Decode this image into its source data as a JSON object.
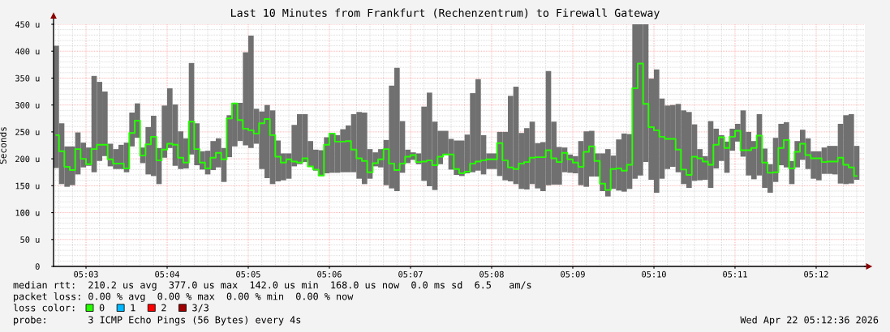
{
  "chart_data": {
    "type": "bar",
    "title": "Last 10 Minutes from Frankfurt (Rechenzentrum) to Firewall Gateway",
    "ylabel": "Seconds",
    "x": [
      5.04389,
      5.045,
      5.04611,
      5.04722,
      5.04833,
      5.04944,
      5.05056,
      5.05167,
      5.05278,
      5.05389,
      5.055,
      5.05611,
      5.05722,
      5.05833,
      5.05944,
      5.06056,
      5.06167,
      5.06278,
      5.06389,
      5.065,
      5.06611,
      5.06722,
      5.06833,
      5.06944,
      5.07056,
      5.07167,
      5.07278,
      5.07389,
      5.075,
      5.07611,
      5.07722,
      5.07833,
      5.07944,
      5.08056,
      5.08167,
      5.08278,
      5.08389,
      5.085,
      5.08611,
      5.08722,
      5.08833,
      5.08944,
      5.09056,
      5.09167,
      5.09278,
      5.09389,
      5.095,
      5.09611,
      5.09722,
      5.09833,
      5.09944,
      5.10056,
      5.10167,
      5.10278,
      5.10389,
      5.105,
      5.10611,
      5.10722,
      5.10833,
      5.10944,
      5.11056,
      5.11167,
      5.11278,
      5.11389,
      5.115,
      5.11611,
      5.11722,
      5.11833,
      5.11944,
      5.12056,
      5.12167,
      5.12278,
      5.12389,
      5.125,
      5.12611,
      5.12722,
      5.12833,
      5.12944,
      5.13056,
      5.13167,
      5.13278,
      5.13389,
      5.135,
      5.13611,
      5.13722,
      5.13833,
      5.13944,
      5.14056,
      5.14167,
      5.14278,
      5.14389,
      5.145,
      5.14611,
      5.14722,
      5.14833,
      5.14944,
      5.15056,
      5.15167,
      5.15278,
      5.15389,
      5.155,
      5.15611,
      5.15722,
      5.15833,
      5.15944,
      5.16056,
      5.16167,
      5.16278,
      5.16389,
      5.165,
      5.16611,
      5.16722,
      5.16833,
      5.16944,
      5.17056,
      5.17167,
      5.17278,
      5.17389,
      5.175,
      5.17611,
      5.17722,
      5.17833,
      5.17944,
      5.18056,
      5.18167,
      5.18278,
      5.18389,
      5.185,
      5.18611,
      5.18722,
      5.18833,
      5.18944,
      5.19056,
      5.19167,
      5.19278,
      5.19389,
      5.195,
      5.19611,
      5.19722,
      5.19833,
      5.19944,
      5.20056,
      5.20167,
      5.20278,
      5.20389,
      5.205,
      5.20611,
      5.20722,
      5.20833
    ],
    "series": [
      {
        "color": "#707070",
        "values": [
          227,
          113,
          75,
          72,
          78,
          46,
          34,
          179,
          147,
          120,
          42,
          37,
          45,
          55,
          63,
          64,
          29,
          88,
          112,
          67,
          97,
          111,
          114,
          70,
          56,
          170,
          78,
          34,
          44,
          54,
          54,
          63,
          78,
          81,
          71,
          173,
          209,
          65,
          107,
          136,
          137,
          76,
          50,
          47,
          77,
          93,
          89,
          48,
          39,
          48,
          67,
          74,
          70,
          80,
          87,
          108,
          124,
          133,
          55,
          26,
          34,
          84,
          191,
          229,
          96,
          25,
          14,
          20,
          138,
          174,
          127,
          62,
          45,
          57,
          64,
          66,
          72,
          147,
          170,
          73,
          29,
          29,
          82,
          90,
          159,
          181,
          104,
          114,
          116,
          84,
          91,
          212,
          117,
          70,
          46,
          34,
          32,
          82,
          103,
          85,
          43,
          70,
          88,
          62,
          95,
          108,
          102,
          287,
          281,
          256,
          188,
          229,
          149,
          118,
          115,
          127,
          137,
          141,
          105,
          58,
          44,
          124,
          74,
          48,
          58,
          41,
          33,
          86,
          81,
          71,
          114,
          73,
          53,
          82,
          77,
          84,
          43,
          49,
          56,
          57,
          51,
          54,
          49,
          52,
          53,
          111,
          128,
          129,
          63
        ],
        "base": [
          183,
          153,
          148,
          151,
          171,
          184,
          187,
          175,
          196,
          205,
          186,
          181,
          181,
          175,
          223,
          239,
          192,
          171,
          168,
          153,
          202,
          220,
          187,
          181,
          182,
          208,
          188,
          180,
          171,
          179,
          184,
          157,
          203,
          223,
          233,
          225,
          220,
          228,
          181,
          164,
          153,
          158,
          160,
          163,
          186,
          190,
          194,
          185,
          178,
          168,
          173,
          174,
          174,
          175,
          175,
          175,
          163,
          153,
          163,
          186,
          184,
          151,
          145,
          140,
          174,
          192,
          198,
          190,
          159,
          149,
          142,
          190,
          207,
          180,
          170,
          168,
          173,
          175,
          178,
          171,
          181,
          181,
          168,
          160,
          158,
          153,
          144,
          143,
          153,
          145,
          140,
          151,
          152,
          152,
          175,
          174,
          173,
          151,
          148,
          167,
          167,
          140,
          130,
          144,
          141,
          139,
          144,
          163,
          169,
          194,
          161,
          137,
          163,
          181,
          185,
          175,
          153,
          146,
          159,
          160,
          161,
          146,
          182,
          196,
          174,
          215,
          232,
          204,
          169,
          162,
          169,
          146,
          137,
          157,
          188,
          184,
          153,
          184,
          198,
          181,
          163,
          160,
          172,
          172,
          171,
          154,
          153,
          154,
          161
        ]
      },
      {
        "type": "step",
        "name": "0",
        "color": "#26ff00",
        "values": [
          244,
          214,
          185,
          179,
          218,
          200,
          190,
          218,
          226,
          226,
          199,
          191,
          191,
          182,
          248,
          271,
          206,
          227,
          241,
          197,
          217,
          228,
          226,
          202,
          193,
          269,
          218,
          193,
          182,
          202,
          211,
          199,
          275,
          303,
          272,
          256,
          253,
          247,
          266,
          274,
          244,
          204,
          193,
          199,
          195,
          193,
          201,
          186,
          180,
          169,
          226,
          247,
          232,
          232,
          233,
          217,
          201,
          196,
          175,
          192,
          199,
          218,
          191,
          179,
          191,
          204,
          207,
          194,
          195,
          197,
          188,
          204,
          208,
          208,
          181,
          173,
          176,
          191,
          195,
          197,
          199,
          199,
          229,
          197,
          184,
          181,
          191,
          194,
          202,
          203,
          203,
          216,
          201,
          194,
          211,
          199,
          193,
          185,
          213,
          223,
          196,
          154,
          142,
          181,
          182,
          178,
          189,
          331,
          377,
          302,
          259,
          253,
          241,
          237,
          237,
          217,
          180,
          170,
          204,
          201,
          195,
          189,
          226,
          240,
          220,
          241,
          252,
          216,
          216,
          220,
          243,
          193,
          174,
          175,
          220,
          235,
          182,
          213,
          228,
          207,
          201,
          201,
          194,
          195,
          195,
          202,
          189,
          184,
          168
        ]
      },
      {
        "type": "step",
        "name": "1",
        "color": "#00b8ff",
        "values": [
          null,
          null,
          null,
          null,
          null,
          null,
          null,
          null,
          null,
          null,
          null,
          null,
          null,
          null,
          null,
          null,
          null,
          null,
          null,
          null,
          null,
          null,
          null,
          null,
          null,
          null,
          null,
          null,
          null,
          null,
          null,
          null,
          null,
          null,
          null,
          null,
          null,
          null,
          null,
          null,
          null,
          null,
          null,
          null,
          null,
          null,
          null,
          null,
          null,
          null,
          null,
          null,
          null,
          null,
          null,
          null,
          null,
          null,
          null,
          null,
          null,
          null,
          null,
          null,
          null,
          null,
          null,
          null,
          null,
          null,
          null,
          null,
          null,
          null,
          null,
          null,
          null,
          null,
          null,
          null,
          null,
          null,
          null,
          null,
          null,
          null,
          null,
          null,
          null,
          null,
          null,
          null,
          null,
          null,
          null,
          null,
          null,
          null,
          null,
          null,
          null,
          null,
          null,
          null,
          null,
          null,
          null,
          null,
          null,
          null,
          null,
          null,
          null,
          null,
          null,
          null,
          null,
          null,
          null,
          null,
          null,
          null,
          null,
          null,
          null,
          null,
          null,
          null,
          null,
          null,
          null,
          null,
          null,
          null,
          null,
          null,
          null,
          null,
          null,
          null,
          null,
          null,
          null,
          null,
          null,
          null,
          null,
          null,
          null
        ]
      },
      {
        "type": "step",
        "name": "2",
        "color": "#ff0000",
        "values": [
          null,
          null,
          null,
          null,
          null,
          null,
          null,
          null,
          null,
          null,
          null,
          null,
          null,
          null,
          null,
          null,
          null,
          null,
          null,
          null,
          null,
          null,
          null,
          null,
          null,
          null,
          null,
          null,
          null,
          null,
          null,
          null,
          null,
          null,
          null,
          null,
          null,
          null,
          null,
          null,
          null,
          null,
          null,
          null,
          null,
          null,
          null,
          null,
          null,
          null,
          null,
          null,
          null,
          null,
          null,
          null,
          null,
          null,
          null,
          null,
          null,
          null,
          null,
          null,
          null,
          null,
          null,
          null,
          null,
          null,
          null,
          null,
          null,
          null,
          null,
          null,
          null,
          null,
          null,
          null,
          null,
          null,
          null,
          null,
          null,
          null,
          null,
          null,
          null,
          null,
          null,
          null,
          null,
          null,
          null,
          null,
          null,
          null,
          null,
          null,
          null,
          null,
          null,
          null,
          null,
          null,
          null,
          null,
          null,
          null,
          null,
          null,
          null,
          null,
          null,
          null,
          null,
          null,
          null,
          null,
          null,
          null,
          null,
          null,
          null,
          null,
          null,
          null,
          null,
          null,
          null,
          null,
          null,
          null,
          null,
          null,
          null,
          null,
          null,
          null,
          null,
          null,
          null,
          null,
          null,
          null,
          null,
          null,
          null
        ]
      },
      {
        "type": "step",
        "name": "3/3",
        "color": "#a10000",
        "values": [
          null,
          null,
          null,
          null,
          null,
          null,
          null,
          null,
          null,
          null,
          null,
          null,
          null,
          null,
          null,
          null,
          null,
          null,
          null,
          null,
          null,
          null,
          null,
          null,
          null,
          null,
          null,
          null,
          null,
          null,
          null,
          null,
          null,
          null,
          null,
          null,
          null,
          null,
          null,
          null,
          null,
          null,
          null,
          null,
          null,
          null,
          null,
          null,
          null,
          null,
          null,
          null,
          null,
          null,
          null,
          null,
          null,
          null,
          null,
          null,
          null,
          null,
          null,
          null,
          null,
          null,
          null,
          null,
          null,
          null,
          null,
          null,
          null,
          null,
          null,
          null,
          null,
          null,
          null,
          null,
          null,
          null,
          null,
          null,
          null,
          null,
          null,
          null,
          null,
          null,
          null,
          null,
          null,
          null,
          null,
          null,
          null,
          null,
          null,
          null,
          null,
          null,
          null,
          null,
          null,
          null,
          null,
          null,
          null,
          null,
          null,
          null,
          null,
          null,
          null,
          null,
          null,
          null,
          null,
          null,
          null,
          null,
          null,
          null,
          null,
          null,
          null,
          null,
          null,
          null,
          null,
          null,
          null,
          null,
          null,
          null,
          null,
          null,
          null,
          null,
          null,
          null,
          null,
          null,
          null,
          null,
          null,
          null,
          null
        ]
      }
    ],
    "xlim": [
      5.04333,
      5.21
    ],
    "xticks": [
      {
        "value": 5.04444,
        "label": null
      },
      {
        "value": 5.04722,
        "label": null
      },
      {
        "value": 5.05,
        "label": "05:03"
      },
      {
        "value": 5.05278,
        "label": null
      },
      {
        "value": 5.05556,
        "label": null
      },
      {
        "value": 5.05833,
        "label": null
      },
      {
        "value": 5.06111,
        "label": null
      },
      {
        "value": 5.06389,
        "label": null
      },
      {
        "value": 5.06667,
        "label": "05:04"
      },
      {
        "value": 5.06944,
        "label": null
      },
      {
        "value": 5.07222,
        "label": null
      },
      {
        "value": 5.075,
        "label": null
      },
      {
        "value": 5.07778,
        "label": null
      },
      {
        "value": 5.08056,
        "label": null
      },
      {
        "value": 5.08333,
        "label": "05:05"
      },
      {
        "value": 5.08611,
        "label": null
      },
      {
        "value": 5.08889,
        "label": null
      },
      {
        "value": 5.09167,
        "label": null
      },
      {
        "value": 5.09444,
        "label": null
      },
      {
        "value": 5.09722,
        "label": null
      },
      {
        "value": 5.1,
        "label": "05:06"
      },
      {
        "value": 5.10278,
        "label": null
      },
      {
        "value": 5.10556,
        "label": null
      },
      {
        "value": 5.10833,
        "label": null
      },
      {
        "value": 5.11111,
        "label": null
      },
      {
        "value": 5.11389,
        "label": null
      },
      {
        "value": 5.11667,
        "label": "05:07"
      },
      {
        "value": 5.11944,
        "label": null
      },
      {
        "value": 5.12222,
        "label": null
      },
      {
        "value": 5.125,
        "label": null
      },
      {
        "value": 5.12778,
        "label": null
      },
      {
        "value": 5.13056,
        "label": null
      },
      {
        "value": 5.13333,
        "label": "05:08"
      },
      {
        "value": 5.13611,
        "label": null
      },
      {
        "value": 5.13889,
        "label": null
      },
      {
        "value": 5.14167,
        "label": null
      },
      {
        "value": 5.14444,
        "label": null
      },
      {
        "value": 5.14722,
        "label": null
      },
      {
        "value": 5.15,
        "label": "05:09"
      },
      {
        "value": 5.15278,
        "label": null
      },
      {
        "value": 5.15556,
        "label": null
      },
      {
        "value": 5.15833,
        "label": null
      },
      {
        "value": 5.16111,
        "label": null
      },
      {
        "value": 5.16389,
        "label": null
      },
      {
        "value": 5.16667,
        "label": "05:10"
      },
      {
        "value": 5.16944,
        "label": null
      },
      {
        "value": 5.17222,
        "label": null
      },
      {
        "value": 5.175,
        "label": null
      },
      {
        "value": 5.17778,
        "label": null
      },
      {
        "value": 5.18056,
        "label": null
      },
      {
        "value": 5.18333,
        "label": "05:11"
      },
      {
        "value": 5.18611,
        "label": null
      },
      {
        "value": 5.18889,
        "label": null
      },
      {
        "value": 5.19167,
        "label": null
      },
      {
        "value": 5.19444,
        "label": null
      },
      {
        "value": 5.19722,
        "label": null
      },
      {
        "value": 5.2,
        "label": "05:12"
      },
      {
        "value": 5.20278,
        "label": null
      },
      {
        "value": 5.20556,
        "label": null
      },
      {
        "value": 5.20833,
        "label": null
      }
    ],
    "ylim": [
      0,
      450
    ],
    "yticks": [
      0,
      {
        "value": 10,
        "label": null
      },
      {
        "value": 20,
        "label": null
      },
      {
        "value": 30,
        "label": null
      },
      {
        "value": 40,
        "label": null
      },
      {
        "value": 50,
        "label": "50 u"
      },
      {
        "value": 60,
        "label": null
      },
      {
        "value": 70,
        "label": null
      },
      {
        "value": 80,
        "label": null
      },
      {
        "value": 90,
        "label": null
      },
      {
        "value": 100,
        "label": "100 u"
      },
      {
        "value": 110,
        "label": null
      },
      {
        "value": 120,
        "label": null
      },
      {
        "value": 130,
        "label": null
      },
      {
        "value": 140,
        "label": null
      },
      {
        "value": 150,
        "label": "150 u"
      },
      {
        "value": 160,
        "label": null
      },
      {
        "value": 170,
        "label": null
      },
      {
        "value": 180,
        "label": null
      },
      {
        "value": 190,
        "label": null
      },
      {
        "value": 200,
        "label": "200 u"
      },
      {
        "value": 210,
        "label": null
      },
      {
        "value": 220,
        "label": null
      },
      {
        "value": 230,
        "label": null
      },
      {
        "value": 240,
        "label": null
      },
      {
        "value": 250,
        "label": "250 u"
      },
      {
        "value": 260,
        "label": null
      },
      {
        "value": 270,
        "label": null
      },
      {
        "value": 280,
        "label": null
      },
      {
        "value": 290,
        "label": null
      },
      {
        "value": 300,
        "label": "300 u"
      },
      {
        "value": 310,
        "label": null
      },
      {
        "value": 320,
        "label": null
      },
      {
        "value": 330,
        "label": null
      },
      {
        "value": 340,
        "label": null
      },
      {
        "value": 350,
        "label": "350 u"
      },
      {
        "value": 360,
        "label": null
      },
      {
        "value": 370,
        "label": null
      },
      {
        "value": 380,
        "label": null
      },
      {
        "value": 390,
        "label": null
      },
      {
        "value": 400,
        "label": "400 u"
      },
      {
        "value": 410,
        "label": null
      },
      {
        "value": 420,
        "label": null
      },
      {
        "value": 430,
        "label": null
      },
      {
        "value": 440,
        "label": null
      },
      {
        "value": 450,
        "label": "450 u"
      }
    ],
    "grid": true,
    "legend": "bottom",
    "legend_title": "loss color:",
    "annotations": [
      "median rtt:  210.2 us avg  377.0 us max  142.0 us min  168.0 us now  0.0 ms sd  6.5   am/s",
      "packet loss: 0.00 % avg  0.00 % max  0.00 % min  0.00 % now",
      "probe:       3 ICMP Echo Pings (56 Bytes) every 4s",
      "Wed Apr 22 05:12:36 2026"
    ]
  }
}
